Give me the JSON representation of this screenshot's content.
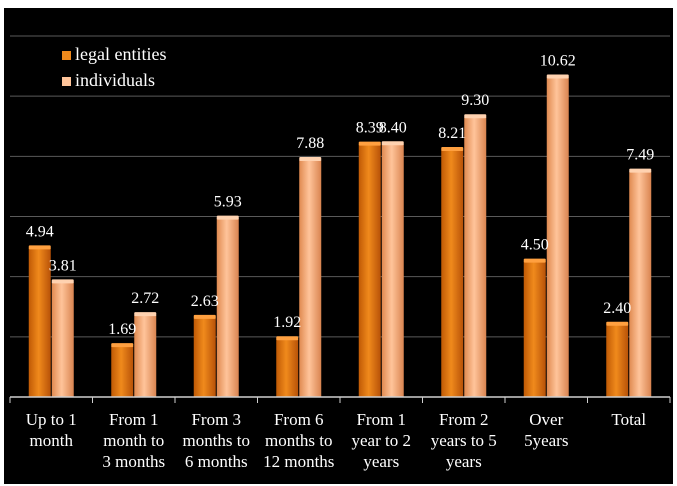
{
  "chart_data": {
    "type": "bar",
    "categories": [
      [
        "Up to 1",
        "month"
      ],
      [
        "From 1",
        "month to",
        "3 months"
      ],
      [
        "From 3",
        "months to",
        "6 months"
      ],
      [
        "From 6",
        "months to",
        "12 months"
      ],
      [
        "From 1",
        "year to 2",
        "years"
      ],
      [
        "From 2",
        "years to 5",
        "years"
      ],
      [
        "Over",
        "5years"
      ],
      [
        "Total"
      ]
    ],
    "series": [
      {
        "name": "legal entities",
        "color": "#e07a10",
        "values": [
          4.94,
          1.69,
          2.63,
          1.92,
          8.39,
          8.21,
          4.5,
          2.4
        ],
        "labels": [
          "4.94",
          "1.69",
          "2.63",
          "1.92",
          "8.39",
          "8.21",
          "4.50",
          "2.40"
        ]
      },
      {
        "name": "individuals",
        "color": "#f2a66f",
        "values": [
          3.81,
          2.72,
          5.93,
          7.88,
          8.4,
          9.3,
          10.62,
          7.49
        ],
        "labels": [
          "3.81",
          "2.72",
          "5.93",
          "7.88",
          "8.40",
          "9.30",
          "10.62",
          "7.49"
        ]
      }
    ],
    "ylim": [
      0,
      12
    ],
    "grid": true,
    "legend_position": "top-left",
    "background": "#000000"
  }
}
